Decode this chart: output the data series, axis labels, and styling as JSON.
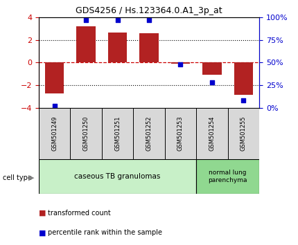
{
  "title": "GDS4256 / Hs.123364.0.A1_3p_at",
  "samples": [
    "GSM501249",
    "GSM501250",
    "GSM501251",
    "GSM501252",
    "GSM501253",
    "GSM501254",
    "GSM501255"
  ],
  "red_bars": [
    -2.75,
    3.2,
    2.65,
    2.58,
    -0.08,
    -1.1,
    -2.85
  ],
  "blue_pct": [
    2,
    97,
    97,
    97,
    48,
    28,
    8
  ],
  "ylim": [
    -4,
    4
  ],
  "right_ylim": [
    0,
    100
  ],
  "bar_color": "#B22222",
  "dot_color": "#0000CD",
  "zero_line_color": "#CC0000",
  "dotted_color": "#000000",
  "group1_label": "caseous TB granulomas",
  "group2_label": "normal lung\nparenchyma",
  "group1_count": 5,
  "group2_count": 2,
  "group1_color": "#c8f0c8",
  "group2_color": "#90d890",
  "cell_type_label": "cell type",
  "legend_red": "transformed count",
  "legend_blue": "percentile rank within the sample",
  "tick_label_color_left": "#CC0000",
  "tick_label_color_right": "#0000CD",
  "bg_sample_box": "#d8d8d8"
}
